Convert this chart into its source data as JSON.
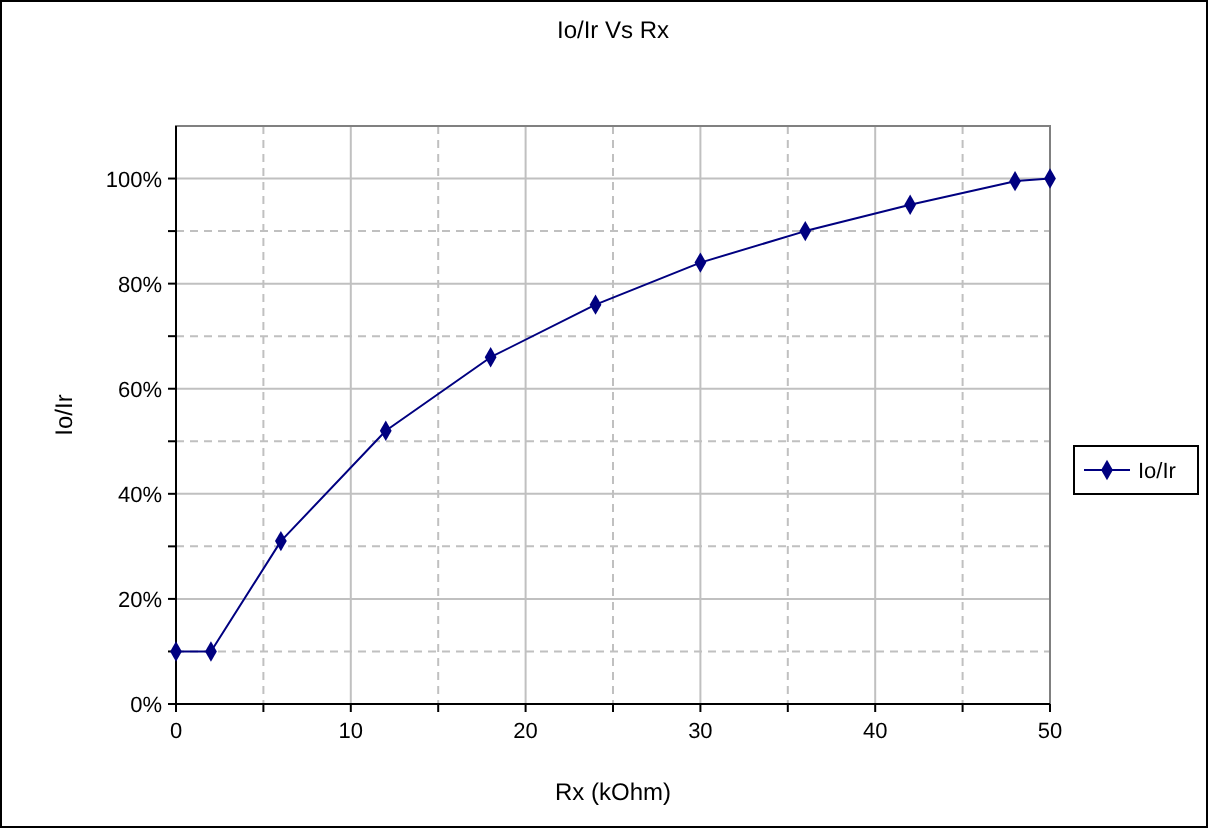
{
  "chart_data": {
    "type": "line",
    "title": "Io/Ir Vs Rx",
    "xlabel": "Rx (kOhm)",
    "ylabel": "Io/Ir",
    "x": [
      0,
      2,
      6,
      12,
      18,
      24,
      30,
      36,
      42,
      48,
      50
    ],
    "series": [
      {
        "name": "Io/Ir",
        "color": "#000080",
        "values": [
          10,
          10,
          31,
          52,
          66,
          76,
          84,
          90,
          95,
          99.5,
          100
        ]
      }
    ],
    "xlim": [
      0,
      50
    ],
    "xticks": [
      0,
      {
        "value": 5,
        "label": null
      },
      10,
      {
        "value": 15,
        "label": null
      },
      20,
      {
        "value": 25,
        "label": null
      },
      30,
      {
        "value": 35,
        "label": null
      },
      40,
      {
        "value": 45,
        "label": null
      },
      50
    ],
    "ylim": [
      0,
      110
    ],
    "yticks": [
      {
        "value": 0,
        "label": "0%"
      },
      {
        "value": 10,
        "label": null
      },
      {
        "value": 20,
        "label": "20%"
      },
      {
        "value": 30,
        "label": null
      },
      {
        "value": 40,
        "label": "40%"
      },
      {
        "value": 50,
        "label": null
      },
      {
        "value": 60,
        "label": "60%"
      },
      {
        "value": 70,
        "label": null
      },
      {
        "value": 80,
        "label": "80%"
      },
      {
        "value": 90,
        "label": null
      },
      {
        "value": 100,
        "label": "100%"
      }
    ],
    "grid": true,
    "legend": "right",
    "marker": "diamond",
    "line_style": "solid"
  }
}
